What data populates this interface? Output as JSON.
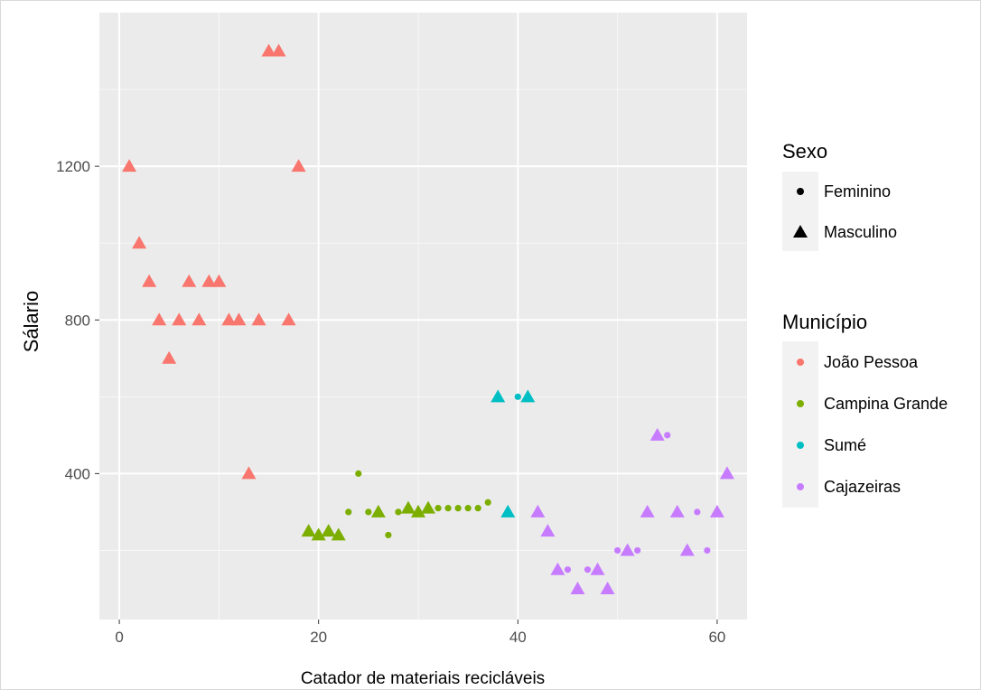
{
  "chart_data": {
    "type": "scatter",
    "xlabel": "Catador de materiais recicláveis",
    "ylabel": "Sálario",
    "xlim": [
      -2,
      63
    ],
    "ylim": [
      20,
      1600
    ],
    "x_ticks": [
      0,
      20,
      40,
      60
    ],
    "y_ticks": [
      400,
      800,
      1200
    ],
    "grid": true,
    "legend_placement": "right",
    "legends": {
      "sexo": {
        "title": "Sexo",
        "entries": [
          {
            "label": "Feminino",
            "shape": "circle"
          },
          {
            "label": "Masculino",
            "shape": "triangle"
          }
        ]
      },
      "municipio": {
        "title": "Município",
        "entries": [
          {
            "label": "João Pessoa",
            "color": "#F8766D"
          },
          {
            "label": "Campina Grande",
            "color": "#7CAE00"
          },
          {
            "label": "Sumé",
            "color": "#00BFC4"
          },
          {
            "label": "Cajazeiras",
            "color": "#C77CFF"
          }
        ]
      }
    },
    "series": [
      {
        "name": "João Pessoa",
        "color": "#F8766D",
        "points": [
          {
            "x": 1,
            "y": 1200,
            "sexo": "Masculino"
          },
          {
            "x": 2,
            "y": 1000,
            "sexo": "Masculino"
          },
          {
            "x": 3,
            "y": 900,
            "sexo": "Masculino"
          },
          {
            "x": 4,
            "y": 800,
            "sexo": "Masculino"
          },
          {
            "x": 5,
            "y": 700,
            "sexo": "Masculino"
          },
          {
            "x": 6,
            "y": 800,
            "sexo": "Masculino"
          },
          {
            "x": 7,
            "y": 900,
            "sexo": "Masculino"
          },
          {
            "x": 8,
            "y": 800,
            "sexo": "Masculino"
          },
          {
            "x": 9,
            "y": 900,
            "sexo": "Masculino"
          },
          {
            "x": 10,
            "y": 900,
            "sexo": "Masculino"
          },
          {
            "x": 11,
            "y": 800,
            "sexo": "Masculino"
          },
          {
            "x": 12,
            "y": 800,
            "sexo": "Masculino"
          },
          {
            "x": 13,
            "y": 400,
            "sexo": "Masculino"
          },
          {
            "x": 14,
            "y": 800,
            "sexo": "Masculino"
          },
          {
            "x": 15,
            "y": 1500,
            "sexo": "Masculino"
          },
          {
            "x": 16,
            "y": 1500,
            "sexo": "Masculino"
          },
          {
            "x": 17,
            "y": 800,
            "sexo": "Masculino"
          },
          {
            "x": 18,
            "y": 1200,
            "sexo": "Masculino"
          }
        ]
      },
      {
        "name": "Campina Grande",
        "color": "#7CAE00",
        "points": [
          {
            "x": 19,
            "y": 250,
            "sexo": "Masculino"
          },
          {
            "x": 20,
            "y": 240,
            "sexo": "Masculino"
          },
          {
            "x": 21,
            "y": 250,
            "sexo": "Masculino"
          },
          {
            "x": 22,
            "y": 240,
            "sexo": "Masculino"
          },
          {
            "x": 23,
            "y": 300,
            "sexo": "Feminino"
          },
          {
            "x": 24,
            "y": 400,
            "sexo": "Feminino"
          },
          {
            "x": 25,
            "y": 300,
            "sexo": "Feminino"
          },
          {
            "x": 26,
            "y": 300,
            "sexo": "Masculino"
          },
          {
            "x": 27,
            "y": 240,
            "sexo": "Feminino"
          },
          {
            "x": 28,
            "y": 300,
            "sexo": "Feminino"
          },
          {
            "x": 29,
            "y": 310,
            "sexo": "Masculino"
          },
          {
            "x": 30,
            "y": 300,
            "sexo": "Masculino"
          },
          {
            "x": 31,
            "y": 310,
            "sexo": "Masculino"
          },
          {
            "x": 32,
            "y": 310,
            "sexo": "Feminino"
          },
          {
            "x": 33,
            "y": 310,
            "sexo": "Feminino"
          },
          {
            "x": 34,
            "y": 310,
            "sexo": "Feminino"
          },
          {
            "x": 35,
            "y": 310,
            "sexo": "Feminino"
          },
          {
            "x": 36,
            "y": 310,
            "sexo": "Feminino"
          },
          {
            "x": 37,
            "y": 325,
            "sexo": "Feminino"
          }
        ]
      },
      {
        "name": "Sumé",
        "color": "#00BFC4",
        "points": [
          {
            "x": 38,
            "y": 600,
            "sexo": "Masculino"
          },
          {
            "x": 39,
            "y": 300,
            "sexo": "Masculino"
          },
          {
            "x": 40,
            "y": 600,
            "sexo": "Feminino"
          },
          {
            "x": 41,
            "y": 600,
            "sexo": "Masculino"
          }
        ]
      },
      {
        "name": "Cajazeiras",
        "color": "#C77CFF",
        "points": [
          {
            "x": 42,
            "y": 300,
            "sexo": "Masculino"
          },
          {
            "x": 43,
            "y": 250,
            "sexo": "Masculino"
          },
          {
            "x": 44,
            "y": 150,
            "sexo": "Masculino"
          },
          {
            "x": 45,
            "y": 150,
            "sexo": "Feminino"
          },
          {
            "x": 46,
            "y": 100,
            "sexo": "Masculino"
          },
          {
            "x": 47,
            "y": 150,
            "sexo": "Feminino"
          },
          {
            "x": 48,
            "y": 150,
            "sexo": "Masculino"
          },
          {
            "x": 49,
            "y": 100,
            "sexo": "Masculino"
          },
          {
            "x": 50,
            "y": 200,
            "sexo": "Feminino"
          },
          {
            "x": 51,
            "y": 200,
            "sexo": "Masculino"
          },
          {
            "x": 52,
            "y": 200,
            "sexo": "Feminino"
          },
          {
            "x": 53,
            "y": 300,
            "sexo": "Masculino"
          },
          {
            "x": 54,
            "y": 500,
            "sexo": "Masculino"
          },
          {
            "x": 55,
            "y": 500,
            "sexo": "Feminino"
          },
          {
            "x": 56,
            "y": 300,
            "sexo": "Masculino"
          },
          {
            "x": 57,
            "y": 200,
            "sexo": "Masculino"
          },
          {
            "x": 58,
            "y": 300,
            "sexo": "Feminino"
          },
          {
            "x": 59,
            "y": 200,
            "sexo": "Feminino"
          },
          {
            "x": 60,
            "y": 300,
            "sexo": "Masculino"
          },
          {
            "x": 61,
            "y": 400,
            "sexo": "Masculino"
          }
        ]
      }
    ]
  }
}
